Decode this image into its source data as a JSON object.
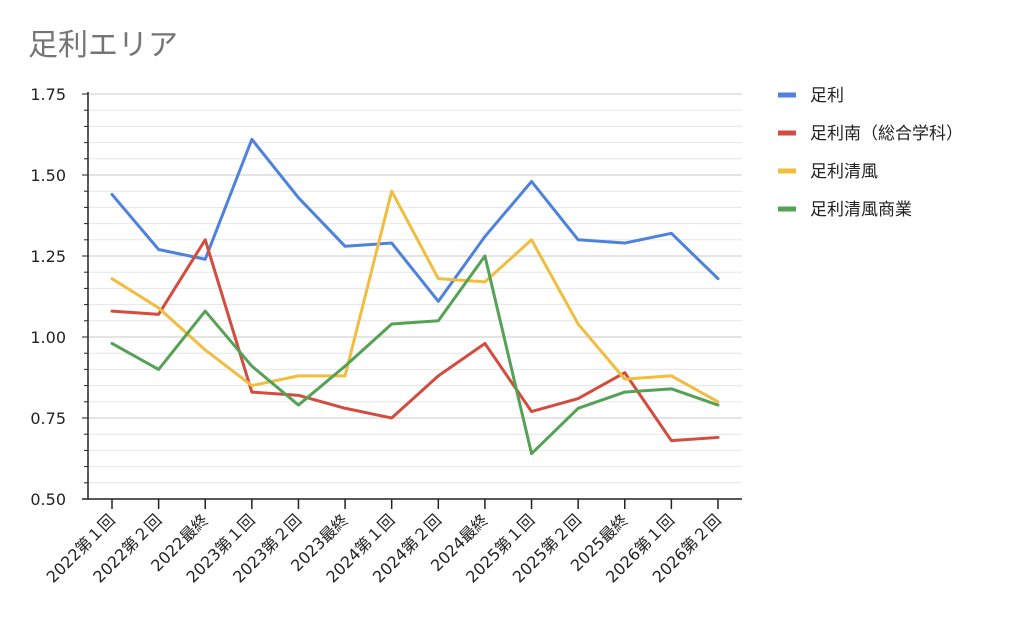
{
  "chart_data": {
    "type": "line",
    "title": "足利エリア",
    "xlabel": "",
    "ylabel": "",
    "ylim": [
      0.5,
      1.75
    ],
    "yticks": [
      "1.75",
      "1.50",
      "1.25",
      "1.00",
      "0.75",
      "0.50"
    ],
    "ytick_values": [
      1.75,
      1.5,
      1.25,
      1.0,
      0.75,
      0.5
    ],
    "categories": [
      "2022第１回",
      "2022第２回",
      "2022最終",
      "2023第１回",
      "2023第２回",
      "2023最終",
      "2024第１回",
      "2024第２回",
      "2024最終",
      "2025第１回",
      "2025第２回",
      "2025最終",
      "2026第１回",
      "2026第２回"
    ],
    "legend_position": "right",
    "grid": true,
    "series": [
      {
        "name": "足利",
        "color": "#4e82dc",
        "values": [
          1.44,
          1.27,
          1.24,
          1.61,
          1.43,
          1.28,
          1.29,
          1.11,
          1.31,
          1.48,
          1.3,
          1.29,
          1.32,
          1.18
        ]
      },
      {
        "name": "足利南（総合学科）",
        "color": "#d34c3e",
        "values": [
          1.08,
          1.07,
          1.3,
          0.83,
          0.82,
          0.78,
          0.75,
          0.88,
          0.98,
          0.77,
          0.81,
          0.89,
          0.68,
          0.69
        ]
      },
      {
        "name": "足利清風",
        "color": "#f0bd3e",
        "values": [
          1.18,
          1.09,
          0.96,
          0.85,
          0.88,
          0.88,
          1.45,
          1.18,
          1.17,
          1.3,
          1.04,
          0.87,
          0.88,
          0.8
        ]
      },
      {
        "name": "足利清風商業",
        "color": "#55a257",
        "values": [
          0.98,
          0.9,
          1.08,
          0.91,
          0.79,
          0.91,
          1.04,
          1.05,
          1.25,
          0.64,
          0.78,
          0.83,
          0.84,
          0.79
        ]
      }
    ]
  }
}
